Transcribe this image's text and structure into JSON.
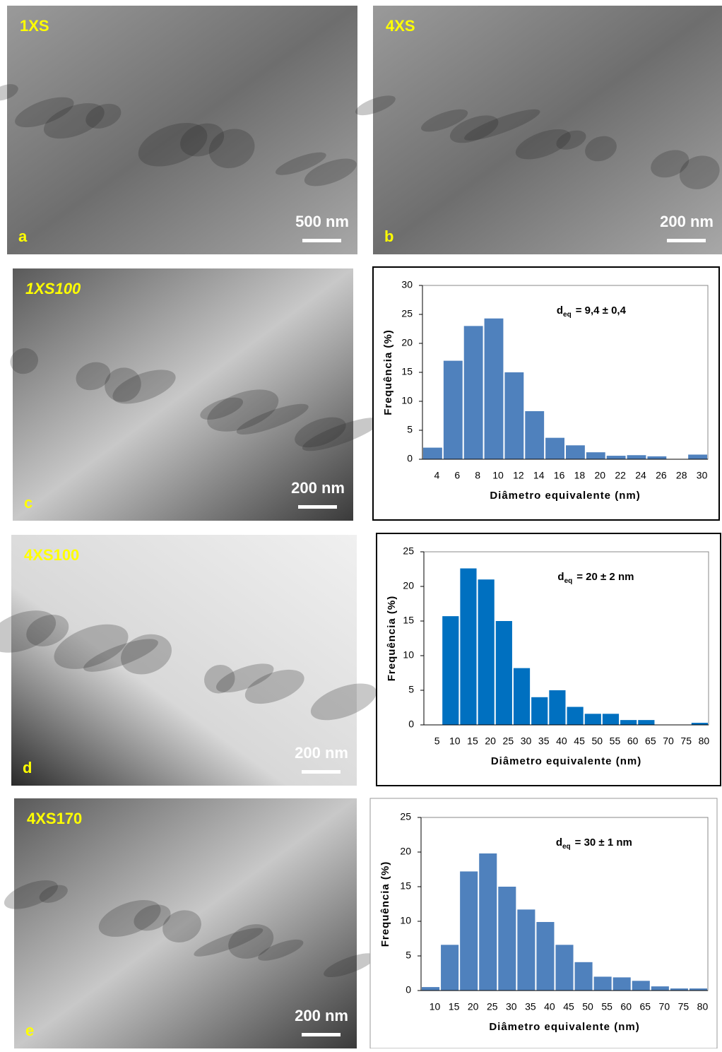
{
  "micrographs": [
    {
      "sample": "1XS",
      "letter": "a",
      "scale": "500 nm"
    },
    {
      "sample": "4XS",
      "letter": "b",
      "scale": "200 nm"
    },
    {
      "sample": "1XS100",
      "letter": "c",
      "scale": "200 nm"
    },
    {
      "sample": "4XS100",
      "letter": "d",
      "scale": "200 nm"
    },
    {
      "sample": "4XS170",
      "letter": "e",
      "scale": "200 nm"
    }
  ],
  "chart_data": [
    {
      "type": "bar",
      "x_label": "Diâmetro equivalente (nm)",
      "y_label": "Frequência (%)",
      "annotation": {
        "symbol": "d",
        "subscript": "eq",
        "text": "= 9,4 ± 0,4"
      },
      "categories": [
        "4",
        "6",
        "8",
        "10",
        "12",
        "14",
        "16",
        "18",
        "20",
        "22",
        "24",
        "26",
        "28",
        "30"
      ],
      "values": [
        2,
        17,
        23,
        24.3,
        15,
        8.3,
        3.7,
        2.4,
        1.2,
        0.6,
        0.7,
        0.5,
        0,
        0.8
      ],
      "color": "#4f81bd",
      "ylim": [
        0,
        30
      ],
      "yticks": [
        0,
        5,
        10,
        15,
        20,
        25,
        30
      ]
    },
    {
      "type": "bar",
      "x_label": "Diâmetro equivalente (nm)",
      "y_label": "Frequência (%)",
      "annotation": {
        "symbol": "d",
        "subscript": "eq",
        "text": "= 20 ± 2 nm"
      },
      "categories": [
        "5",
        "10",
        "15",
        "20",
        "25",
        "30",
        "35",
        "40",
        "45",
        "50",
        "55",
        "60",
        "65",
        "70",
        "75",
        "80"
      ],
      "values": [
        0,
        15.7,
        22.6,
        21,
        15,
        8.2,
        4,
        5,
        2.6,
        1.6,
        1.6,
        0.7,
        0.7,
        0,
        0,
        0.3
      ],
      "color": "#0070c0",
      "ylim": [
        0,
        25
      ],
      "yticks": [
        0,
        5,
        10,
        15,
        20,
        25
      ]
    },
    {
      "type": "bar",
      "x_label": "Diâmetro equivalente (nm)",
      "y_label": "Frequência (%)",
      "annotation": {
        "symbol": "d",
        "subscript": "eq",
        "text": "= 30 ± 1 nm"
      },
      "categories": [
        "10",
        "15",
        "20",
        "25",
        "30",
        "35",
        "40",
        "45",
        "50",
        "55",
        "60",
        "65",
        "70",
        "75",
        "80"
      ],
      "values": [
        0.5,
        6.6,
        17.2,
        19.8,
        15,
        11.7,
        9.9,
        6.6,
        4.1,
        2,
        1.9,
        1.4,
        0.6,
        0.3,
        0.3
      ],
      "color": "#4f81bd",
      "ylim": [
        0,
        25
      ],
      "yticks": [
        0,
        5,
        10,
        15,
        20,
        25
      ]
    }
  ]
}
